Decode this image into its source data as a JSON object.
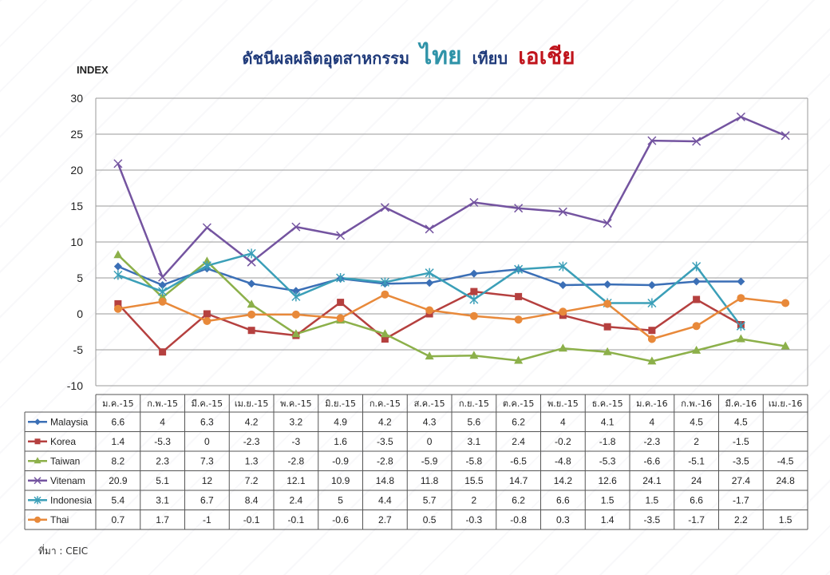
{
  "title": {
    "part1": "ดัชนีผลผลิตอุตสาหกรรม",
    "part2": "ไทย",
    "part3": "เทียบ",
    "part4": "เอเชีย",
    "part1_color": "#1f3a7a",
    "part2_color": "#2f93a8",
    "part3_color": "#1f3a7a",
    "part4_color": "#c0141c"
  },
  "source": "ที่มา : CEIC",
  "chart_data": {
    "type": "line",
    "ylabel": "INDEX",
    "ylim": [
      -10,
      30
    ],
    "yticks": [
      -10,
      -5,
      0,
      5,
      10,
      15,
      20,
      25,
      30
    ],
    "grid": true,
    "categories": [
      "ม.ค.-15",
      "ก.พ.-15",
      "มี.ค.-15",
      "เม.ย.-15",
      "พ.ค.-15",
      "มิ.ย.-15",
      "ก.ค.-15",
      "ส.ค.-15",
      "ก.ย.-15",
      "ต.ค.-15",
      "พ.ย.-15",
      "ธ.ค.-15",
      "ม.ค.-16",
      "ก.พ.-16",
      "มี.ค.-16",
      "เม.ย.-16"
    ],
    "series": [
      {
        "name": "Malaysia",
        "color": "#3b6fb6",
        "marker": "diamond",
        "values": [
          6.6,
          4,
          6.3,
          4.2,
          3.2,
          4.9,
          4.2,
          4.3,
          5.6,
          6.2,
          4,
          4.1,
          4,
          4.5,
          4.5,
          null
        ]
      },
      {
        "name": "Korea",
        "color": "#b5403f",
        "marker": "square",
        "values": [
          1.4,
          -5.3,
          0,
          -2.3,
          -3,
          1.6,
          -3.5,
          0,
          3.1,
          2.4,
          -0.2,
          -1.8,
          -2.3,
          2,
          -1.5,
          null
        ]
      },
      {
        "name": "Taiwan",
        "color": "#8cb04a",
        "marker": "triangle",
        "values": [
          8.2,
          2.3,
          7.3,
          1.3,
          -2.8,
          -0.9,
          -2.8,
          -5.9,
          -5.8,
          -6.5,
          -4.8,
          -5.3,
          -6.6,
          -5.1,
          -3.5,
          -4.5
        ]
      },
      {
        "name": "Vitenam",
        "color": "#7454a0",
        "marker": "x",
        "values": [
          20.9,
          5.1,
          12,
          7.2,
          12.1,
          10.9,
          14.8,
          11.8,
          15.5,
          14.7,
          14.2,
          12.6,
          24.1,
          24,
          27.4,
          24.8
        ]
      },
      {
        "name": "Indonesia",
        "color": "#3b9fb8",
        "marker": "star",
        "values": [
          5.4,
          3.1,
          6.7,
          8.4,
          2.4,
          5,
          4.4,
          5.7,
          2,
          6.2,
          6.6,
          1.5,
          1.5,
          6.6,
          -1.7,
          null
        ]
      },
      {
        "name": "Thai",
        "color": "#e8893a",
        "marker": "circle",
        "values": [
          0.7,
          1.7,
          -1,
          -0.1,
          -0.1,
          -0.6,
          2.7,
          0.5,
          -0.3,
          -0.8,
          0.3,
          1.4,
          -3.5,
          -1.7,
          2.2,
          1.5
        ]
      }
    ]
  }
}
